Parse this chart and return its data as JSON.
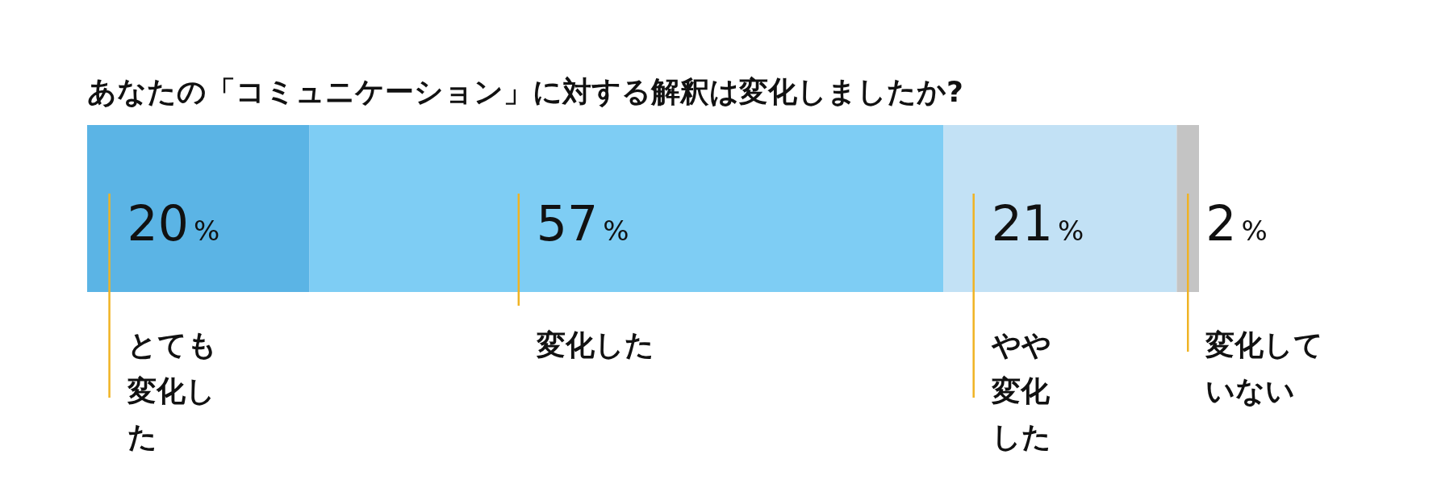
{
  "chart_data": {
    "type": "bar",
    "orientation": "horizontal",
    "stacked": true,
    "title": "あなたの「コミュニケーション」に対する解釈は変化しましたか?",
    "categories": [
      null
    ],
    "series": [
      {
        "name": "とても変化した",
        "color": "#5bb4e5",
        "values": [
          20
        ],
        "value_labels": [
          "20%"
        ]
      },
      {
        "name": "変化した",
        "color": "#7ecdf4",
        "values": [
          57
        ],
        "value_labels": [
          "57%"
        ]
      },
      {
        "name": "やや変化した",
        "color": "#c2e1f5",
        "values": [
          21
        ],
        "value_labels": [
          "21%"
        ]
      },
      {
        "name": "変化していない",
        "color": "#c4c4c4",
        "values": [
          2
        ],
        "value_labels": [
          "2%"
        ]
      }
    ]
  }
}
